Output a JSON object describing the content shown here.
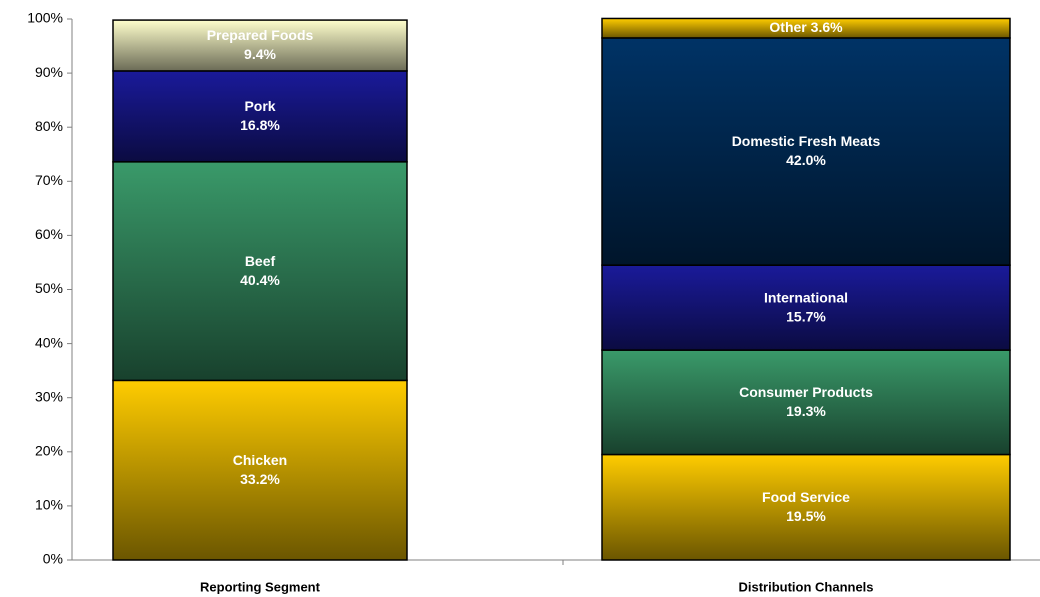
{
  "chart_data": {
    "type": "stacked_bar",
    "categories": [
      "Reporting Segment",
      "Distribution Channels"
    ],
    "stacks": [
      {
        "names": [
          "Chicken",
          "Beef",
          "Pork",
          "Prepared Foods"
        ],
        "values": [
          33.2,
          40.4,
          16.8,
          9.4
        ],
        "value_labels": [
          "33.2%",
          "40.4%",
          "16.8%",
          "9.4%"
        ],
        "colors": [
          "#ffcc00",
          "#3a9a6a",
          "#1a1a9a",
          "#ffffcc"
        ]
      },
      {
        "names": [
          "Food Service",
          "Consumer Products",
          "International",
          "Domestic Fresh Meats",
          "Other"
        ],
        "values": [
          19.5,
          19.3,
          15.7,
          42.0,
          3.6
        ],
        "value_labels": [
          "19.5%",
          "19.3%",
          "15.7%",
          "42.0%",
          "3.6%"
        ],
        "colors": [
          "#ffcc00",
          "#3a9a6a",
          "#1a1a9a",
          "#003366",
          "#ffcc00"
        ]
      }
    ],
    "ylim": [
      0,
      100
    ],
    "yticks": [
      {
        "value": 0,
        "label": "0%"
      },
      {
        "value": 10,
        "label": "10%"
      },
      {
        "value": 20,
        "label": "20%"
      },
      {
        "value": 30,
        "label": "30%"
      },
      {
        "value": 40,
        "label": "40%"
      },
      {
        "value": 50,
        "label": "50%"
      },
      {
        "value": 60,
        "label": "60%"
      },
      {
        "value": 70,
        "label": "70%"
      },
      {
        "value": 80,
        "label": "80%"
      },
      {
        "value": 90,
        "label": "90%"
      },
      {
        "value": 100,
        "label": "100%"
      }
    ]
  }
}
